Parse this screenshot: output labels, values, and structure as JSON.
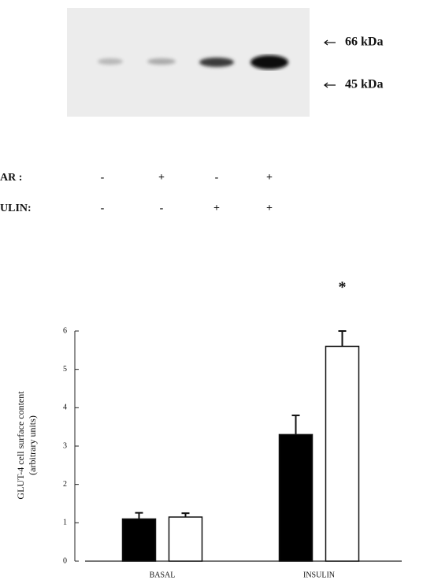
{
  "blot": {
    "markers": [
      "66 kDa",
      "45 kDa"
    ]
  },
  "treatments": [
    {
      "label": "AR :",
      "signs": [
        "-",
        "+",
        "-",
        "+"
      ]
    },
    {
      "label": "ULIN:",
      "signs": [
        "-",
        "-",
        "+",
        "+"
      ]
    }
  ],
  "chart_data": {
    "type": "bar",
    "y_label": [
      "GLUT-4 cell surface content",
      "(arbitrary units)"
    ],
    "categories": [
      "BASAL",
      "INSULIN"
    ],
    "series": [
      {
        "color": "#000000",
        "values": [
          1.1,
          3.3
        ],
        "errors": [
          0.16,
          0.5
        ]
      },
      {
        "color": "#ffffff",
        "values": [
          1.15,
          5.6
        ],
        "errors": [
          0.1,
          0.4
        ]
      }
    ],
    "annotation": "*",
    "ylim": [
      0,
      6
    ],
    "yticks": [
      0,
      1,
      2,
      3,
      4,
      5,
      6
    ]
  }
}
